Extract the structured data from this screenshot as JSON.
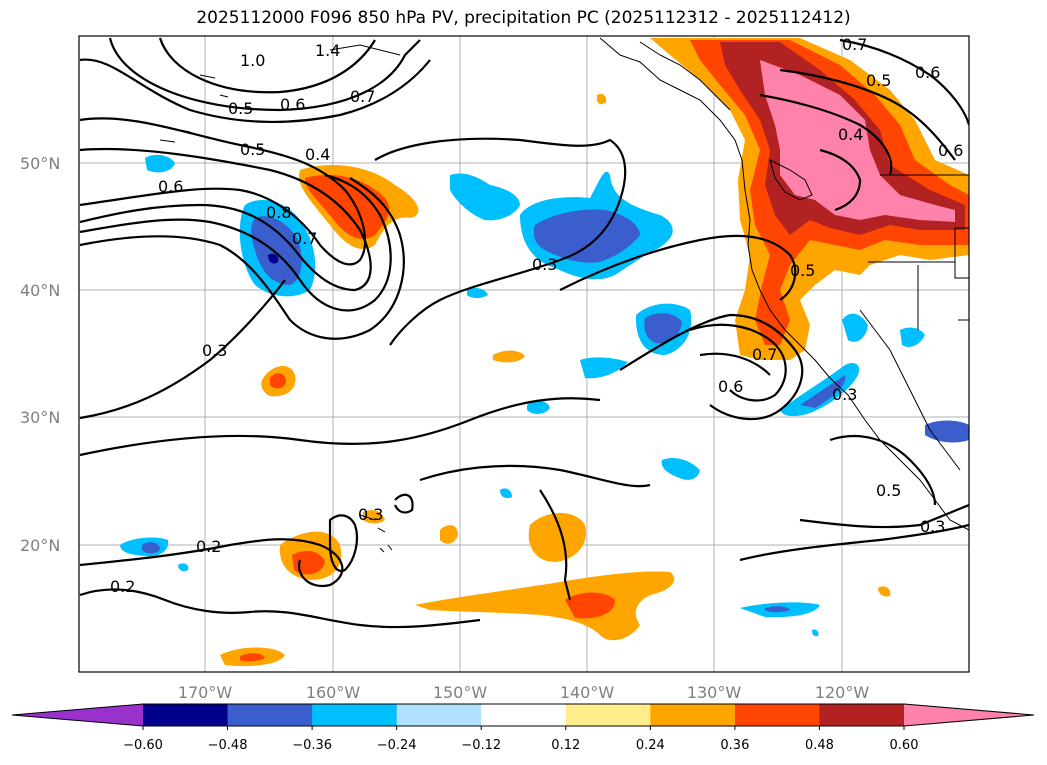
{
  "title": "2025112000 F096 850 hPa PV, precipitation PC (2025112312 - 2025112412)",
  "map": {
    "lat_labels": [
      "50°N",
      "40°N",
      "30°N",
      "20°N"
    ],
    "lon_labels": [
      "170°W",
      "160°W",
      "150°W",
      "140°W",
      "130°W",
      "120°W"
    ],
    "contour_labels": [
      "1.0",
      "1.4",
      "0.7",
      "0.5",
      "0.6",
      "0.5",
      "0.4",
      "0.6",
      "0.8",
      "0.7",
      "0.3",
      "0.3",
      "0.2",
      "0.2",
      "0.7",
      "0.6",
      "0.5",
      "0.4",
      "0.6",
      "0.5",
      "0.7",
      "0.6",
      "0.3",
      "0.3",
      "0.5",
      "0.3"
    ]
  },
  "colorbar": {
    "ticks": [
      "−0.60",
      "−0.48",
      "−0.36",
      "−0.24",
      "−0.12",
      "0.12",
      "0.24",
      "0.36",
      "0.48",
      "0.60"
    ],
    "colors": [
      "#9932cc",
      "#00008b",
      "#3a5fcd",
      "#00bfff",
      "#b0e2ff",
      "#ffffff",
      "#ffec8b",
      "#ffa500",
      "#ff4500",
      "#b22222",
      "#ff82ab"
    ]
  }
}
